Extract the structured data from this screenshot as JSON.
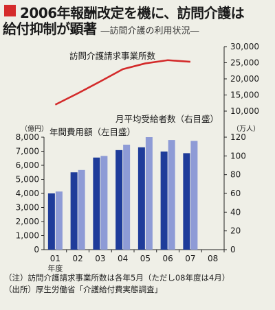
{
  "title": {
    "line1": "2006年報酬改定を機に、訪問介護は",
    "line2": "給付抑制が顕著",
    "subtitle": "―訪問介護の利用状況―"
  },
  "chart_data": {
    "type": "bar",
    "categories": [
      "01",
      "02",
      "03",
      "04",
      "05",
      "06",
      "07",
      "08"
    ],
    "x_unit_label": "年度",
    "left_axis": {
      "unit": "（億円）",
      "range": [
        0,
        8000
      ],
      "ticks": [
        "0",
        "1,000",
        "2,000",
        "3,000",
        "4,000",
        "5,000",
        "6,000",
        "7,000",
        "8,000"
      ]
    },
    "right_axis": {
      "unit": "（万人）",
      "range": [
        0,
        120
      ],
      "ticks": [
        "0",
        "20",
        "40",
        "60",
        "80",
        "100",
        "120"
      ]
    },
    "top_axis": {
      "range": [
        10000,
        30000
      ],
      "ticks": [
        "10,000",
        "15,000",
        "20,000",
        "25,000",
        "30,000"
      ]
    },
    "series": [
      {
        "name": "年間費用額（左目盛）",
        "type": "bar",
        "axis": "left",
        "color": "#1f3c9a",
        "values": [
          4000,
          5500,
          6550,
          7080,
          7280,
          6980,
          6860,
          null
        ]
      },
      {
        "name": "月平均受給者数（右目盛）",
        "type": "bar",
        "axis": "right",
        "color": "#8e9bd6",
        "values": [
          62,
          85,
          100,
          112,
          120,
          117,
          116,
          null
        ]
      },
      {
        "name": "訪問介護請求事業所数",
        "type": "line",
        "axis": "top",
        "color": "#d32a2a",
        "values": [
          12000,
          15500,
          19200,
          23000,
          24800,
          25800,
          25300,
          null
        ]
      }
    ]
  },
  "notes": {
    "note1": "（注）訪問介護請求事業所数は各年5月（ただし08年度は4月）",
    "note2": "（出所）厚生労働省「介護給付費実態調査」"
  },
  "colors": {
    "background": "#efefe7",
    "accent": "#d52b2b",
    "bar_dark": "#1f3c9a",
    "bar_light": "#8e9bd6",
    "line": "#d32a2a"
  }
}
